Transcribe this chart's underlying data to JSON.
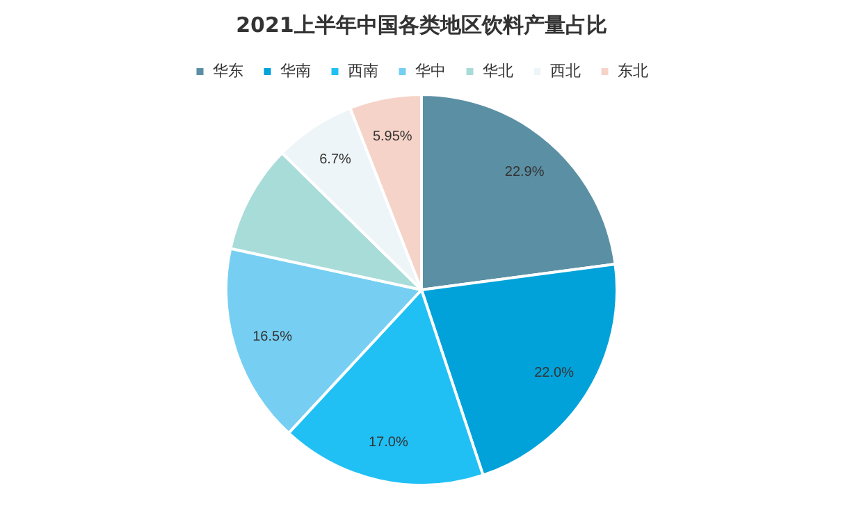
{
  "chart_data": {
    "type": "pie",
    "title": "2021上半年中国各类地区饮料产量占比",
    "categories": [
      "华东",
      "华南",
      "西南",
      "华中",
      "华北",
      "西北",
      "东北"
    ],
    "values": [
      22.9,
      22.0,
      17.0,
      16.5,
      8.95,
      6.7,
      5.95
    ],
    "value_labels": [
      "22.9%",
      "22.0%",
      "17.0%",
      "16.5%",
      null,
      "6.7%",
      "5.95%"
    ],
    "colors": [
      "#5b8fa4",
      "#00a2d9",
      "#20c0f5",
      "#76cff2",
      "#a8dcd8",
      "#eef5f8",
      "#f6d3c8"
    ],
    "legend": "top"
  }
}
